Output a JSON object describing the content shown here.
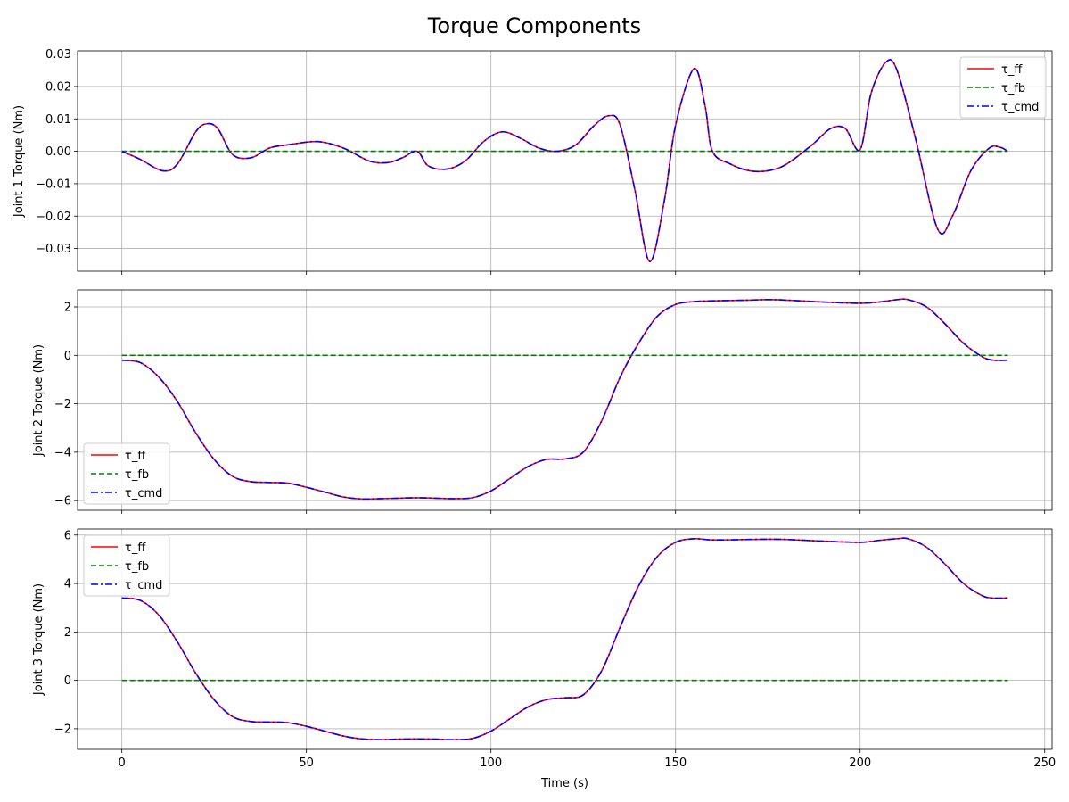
{
  "figure": {
    "title": "Torque Components"
  },
  "chart_data": [
    {
      "type": "line",
      "ylabel": "Joint 1 Torque (Nm)",
      "xlabel": "",
      "xlim": [
        -12,
        252
      ],
      "ylim": [
        -0.037,
        0.031
      ],
      "x_ticks": [
        0,
        50,
        100,
        150,
        200,
        250
      ],
      "x_tick_labels": [
        "",
        "",
        "",
        "",
        "",
        ""
      ],
      "y_ticks": [
        -0.03,
        -0.02,
        -0.01,
        0.0,
        0.01,
        0.02,
        0.03
      ],
      "y_tick_labels": [
        "−0.03",
        "−0.02",
        "−0.01",
        "0.00",
        "0.01",
        "0.02",
        "0.03"
      ],
      "grid": true,
      "legend": {
        "position": "top-right",
        "entries": [
          "τ_ff",
          "τ_fb",
          "τ_cmd"
        ]
      },
      "x": [
        0,
        5,
        11,
        15,
        20,
        23,
        26,
        30,
        35,
        40,
        45,
        53,
        60,
        67,
        72,
        76,
        80,
        83,
        88,
        93,
        98,
        103,
        108,
        113,
        118,
        123,
        128,
        132,
        135,
        139,
        143,
        147,
        150,
        155,
        158,
        160,
        165,
        170,
        175,
        180,
        187,
        192,
        196,
        200,
        203,
        207,
        210,
        215,
        221,
        225,
        230,
        235,
        238,
        240
      ],
      "series": [
        {
          "name": "τ_ff",
          "color": "#ff0000",
          "style": "solid",
          "values": [
            0,
            -0.0025,
            -0.006,
            -0.004,
            0.006,
            0.0085,
            0.007,
            -0.001,
            -0.002,
            0.001,
            0.002,
            0.003,
            0.001,
            -0.003,
            -0.0035,
            -0.002,
            0.0,
            -0.0045,
            -0.0055,
            -0.003,
            0.003,
            0.006,
            0.004,
            0.001,
            0.0,
            0.002,
            0.008,
            0.011,
            0.008,
            -0.012,
            -0.034,
            -0.015,
            0.008,
            0.0255,
            0.014,
            0.0,
            -0.004,
            -0.006,
            -0.006,
            -0.004,
            0.002,
            0.007,
            0.007,
            0.0005,
            0.018,
            0.0275,
            0.025,
            0.004,
            -0.024,
            -0.02,
            -0.006,
            0.001,
            0.0012,
            0.0
          ]
        },
        {
          "name": "τ_fb",
          "color": "#008000",
          "style": "dashed",
          "values": [
            0,
            0,
            0,
            0,
            0,
            0,
            0,
            0,
            0,
            0,
            0,
            0,
            0,
            0,
            0,
            0,
            0,
            0,
            0,
            0,
            0,
            0,
            0,
            0,
            0,
            0,
            0,
            0,
            0,
            0,
            0,
            0,
            0,
            0,
            0,
            0,
            0,
            0,
            0,
            0,
            0,
            0,
            0,
            0,
            0,
            0,
            0,
            0,
            0,
            0,
            0,
            0,
            0,
            0
          ]
        },
        {
          "name": "τ_cmd",
          "color": "#0000ff",
          "style": "dashdot",
          "values": [
            0,
            -0.0025,
            -0.006,
            -0.004,
            0.006,
            0.0085,
            0.007,
            -0.001,
            -0.002,
            0.001,
            0.002,
            0.003,
            0.001,
            -0.003,
            -0.0035,
            -0.002,
            0.0,
            -0.0045,
            -0.0055,
            -0.003,
            0.003,
            0.006,
            0.004,
            0.001,
            0.0,
            0.002,
            0.008,
            0.011,
            0.008,
            -0.012,
            -0.034,
            -0.015,
            0.008,
            0.0255,
            0.014,
            0.0,
            -0.004,
            -0.006,
            -0.006,
            -0.004,
            0.002,
            0.007,
            0.007,
            0.0005,
            0.018,
            0.0275,
            0.025,
            0.004,
            -0.024,
            -0.02,
            -0.006,
            0.001,
            0.0012,
            0.0
          ]
        }
      ]
    },
    {
      "type": "line",
      "ylabel": "Joint 2 Torque (Nm)",
      "xlabel": "",
      "xlim": [
        -12,
        252
      ],
      "ylim": [
        -6.4,
        2.7
      ],
      "x_ticks": [
        0,
        50,
        100,
        150,
        200,
        250
      ],
      "x_tick_labels": [
        "",
        "",
        "",
        "",
        "",
        ""
      ],
      "y_ticks": [
        -6,
        -4,
        -2,
        0,
        2
      ],
      "y_tick_labels": [
        "−6",
        "−4",
        "−2",
        "0",
        "2"
      ],
      "grid": true,
      "legend": {
        "position": "lower-left",
        "entries": [
          "τ_ff",
          "τ_fb",
          "τ_cmd"
        ]
      },
      "x": [
        0,
        5,
        10,
        15,
        20,
        25,
        30,
        35,
        40,
        45,
        50,
        55,
        60,
        65,
        70,
        75,
        80,
        85,
        90,
        95,
        100,
        105,
        110,
        115,
        120,
        125,
        130,
        135,
        140,
        145,
        150,
        155,
        160,
        170,
        175,
        180,
        190,
        200,
        205,
        210,
        213,
        218,
        223,
        228,
        233,
        236,
        240
      ],
      "series": [
        {
          "name": "τ_ff",
          "color": "#ff0000",
          "style": "solid",
          "values": [
            -0.2,
            -0.3,
            -0.9,
            -1.9,
            -3.2,
            -4.3,
            -5.0,
            -5.22,
            -5.25,
            -5.28,
            -5.45,
            -5.65,
            -5.85,
            -5.93,
            -5.92,
            -5.9,
            -5.88,
            -5.9,
            -5.92,
            -5.88,
            -5.6,
            -5.1,
            -4.6,
            -4.3,
            -4.28,
            -4.0,
            -2.7,
            -0.9,
            0.5,
            1.6,
            2.1,
            2.22,
            2.25,
            2.28,
            2.3,
            2.28,
            2.2,
            2.15,
            2.2,
            2.3,
            2.3,
            2.0,
            1.3,
            0.5,
            -0.05,
            -0.2,
            -0.2
          ]
        },
        {
          "name": "τ_fb",
          "color": "#008000",
          "style": "dashed",
          "values": [
            0,
            0,
            0,
            0,
            0,
            0,
            0,
            0,
            0,
            0,
            0,
            0,
            0,
            0,
            0,
            0,
            0,
            0,
            0,
            0,
            0,
            0,
            0,
            0,
            0,
            0,
            0,
            0,
            0,
            0,
            0,
            0,
            0,
            0,
            0,
            0,
            0,
            0,
            0,
            0,
            0,
            0,
            0,
            0,
            0,
            0,
            0
          ]
        },
        {
          "name": "τ_cmd",
          "color": "#0000ff",
          "style": "dashdot",
          "values": [
            -0.2,
            -0.3,
            -0.9,
            -1.9,
            -3.2,
            -4.3,
            -5.0,
            -5.22,
            -5.25,
            -5.28,
            -5.45,
            -5.65,
            -5.85,
            -5.93,
            -5.92,
            -5.9,
            -5.88,
            -5.9,
            -5.92,
            -5.88,
            -5.6,
            -5.1,
            -4.6,
            -4.3,
            -4.28,
            -4.0,
            -2.7,
            -0.9,
            0.5,
            1.6,
            2.1,
            2.22,
            2.25,
            2.28,
            2.3,
            2.28,
            2.2,
            2.15,
            2.2,
            2.3,
            2.3,
            2.0,
            1.3,
            0.5,
            -0.05,
            -0.2,
            -0.2
          ]
        }
      ]
    },
    {
      "type": "line",
      "ylabel": "Joint 3 Torque (Nm)",
      "xlabel": "Time (s)",
      "xlim": [
        -12,
        252
      ],
      "ylim": [
        -2.85,
        6.25
      ],
      "x_ticks": [
        0,
        50,
        100,
        150,
        200,
        250
      ],
      "x_tick_labels": [
        "0",
        "50",
        "100",
        "150",
        "200",
        "250"
      ],
      "y_ticks": [
        -2,
        0,
        2,
        4,
        6
      ],
      "y_tick_labels": [
        "−2",
        "0",
        "2",
        "4",
        "6"
      ],
      "grid": true,
      "legend": {
        "position": "top-left",
        "entries": [
          "τ_ff",
          "τ_fb",
          "τ_cmd"
        ]
      },
      "x": [
        0,
        5,
        10,
        15,
        20,
        25,
        30,
        35,
        40,
        45,
        50,
        55,
        60,
        65,
        70,
        75,
        80,
        85,
        90,
        95,
        100,
        105,
        110,
        115,
        120,
        125,
        130,
        135,
        140,
        145,
        150,
        155,
        160,
        170,
        175,
        180,
        190,
        200,
        205,
        210,
        213,
        218,
        223,
        228,
        233,
        236,
        240
      ],
      "series": [
        {
          "name": "τ_ff",
          "color": "#ff0000",
          "style": "solid",
          "values": [
            3.4,
            3.3,
            2.7,
            1.6,
            0.3,
            -0.8,
            -1.5,
            -1.7,
            -1.72,
            -1.75,
            -1.9,
            -2.1,
            -2.3,
            -2.42,
            -2.45,
            -2.43,
            -2.42,
            -2.43,
            -2.45,
            -2.4,
            -2.1,
            -1.6,
            -1.1,
            -0.8,
            -0.72,
            -0.6,
            0.4,
            2.2,
            3.9,
            5.1,
            5.7,
            5.85,
            5.8,
            5.82,
            5.83,
            5.82,
            5.75,
            5.7,
            5.78,
            5.85,
            5.85,
            5.5,
            4.8,
            4.0,
            3.5,
            3.4,
            3.4
          ]
        },
        {
          "name": "τ_fb",
          "color": "#008000",
          "style": "dashed",
          "values": [
            0,
            0,
            0,
            0,
            0,
            0,
            0,
            0,
            0,
            0,
            0,
            0,
            0,
            0,
            0,
            0,
            0,
            0,
            0,
            0,
            0,
            0,
            0,
            0,
            0,
            0,
            0,
            0,
            0,
            0,
            0,
            0,
            0,
            0,
            0,
            0,
            0,
            0,
            0,
            0,
            0,
            0,
            0,
            0,
            0,
            0,
            0
          ]
        },
        {
          "name": "τ_cmd",
          "color": "#0000ff",
          "style": "dashdot",
          "values": [
            3.4,
            3.3,
            2.7,
            1.6,
            0.3,
            -0.8,
            -1.5,
            -1.7,
            -1.72,
            -1.75,
            -1.9,
            -2.1,
            -2.3,
            -2.42,
            -2.45,
            -2.43,
            -2.42,
            -2.43,
            -2.45,
            -2.4,
            -2.1,
            -1.6,
            -1.1,
            -0.8,
            -0.72,
            -0.6,
            0.4,
            2.2,
            3.9,
            5.1,
            5.7,
            5.85,
            5.8,
            5.82,
            5.83,
            5.82,
            5.75,
            5.7,
            5.78,
            5.85,
            5.85,
            5.5,
            4.8,
            4.0,
            3.5,
            3.4,
            3.4
          ]
        }
      ]
    }
  ]
}
